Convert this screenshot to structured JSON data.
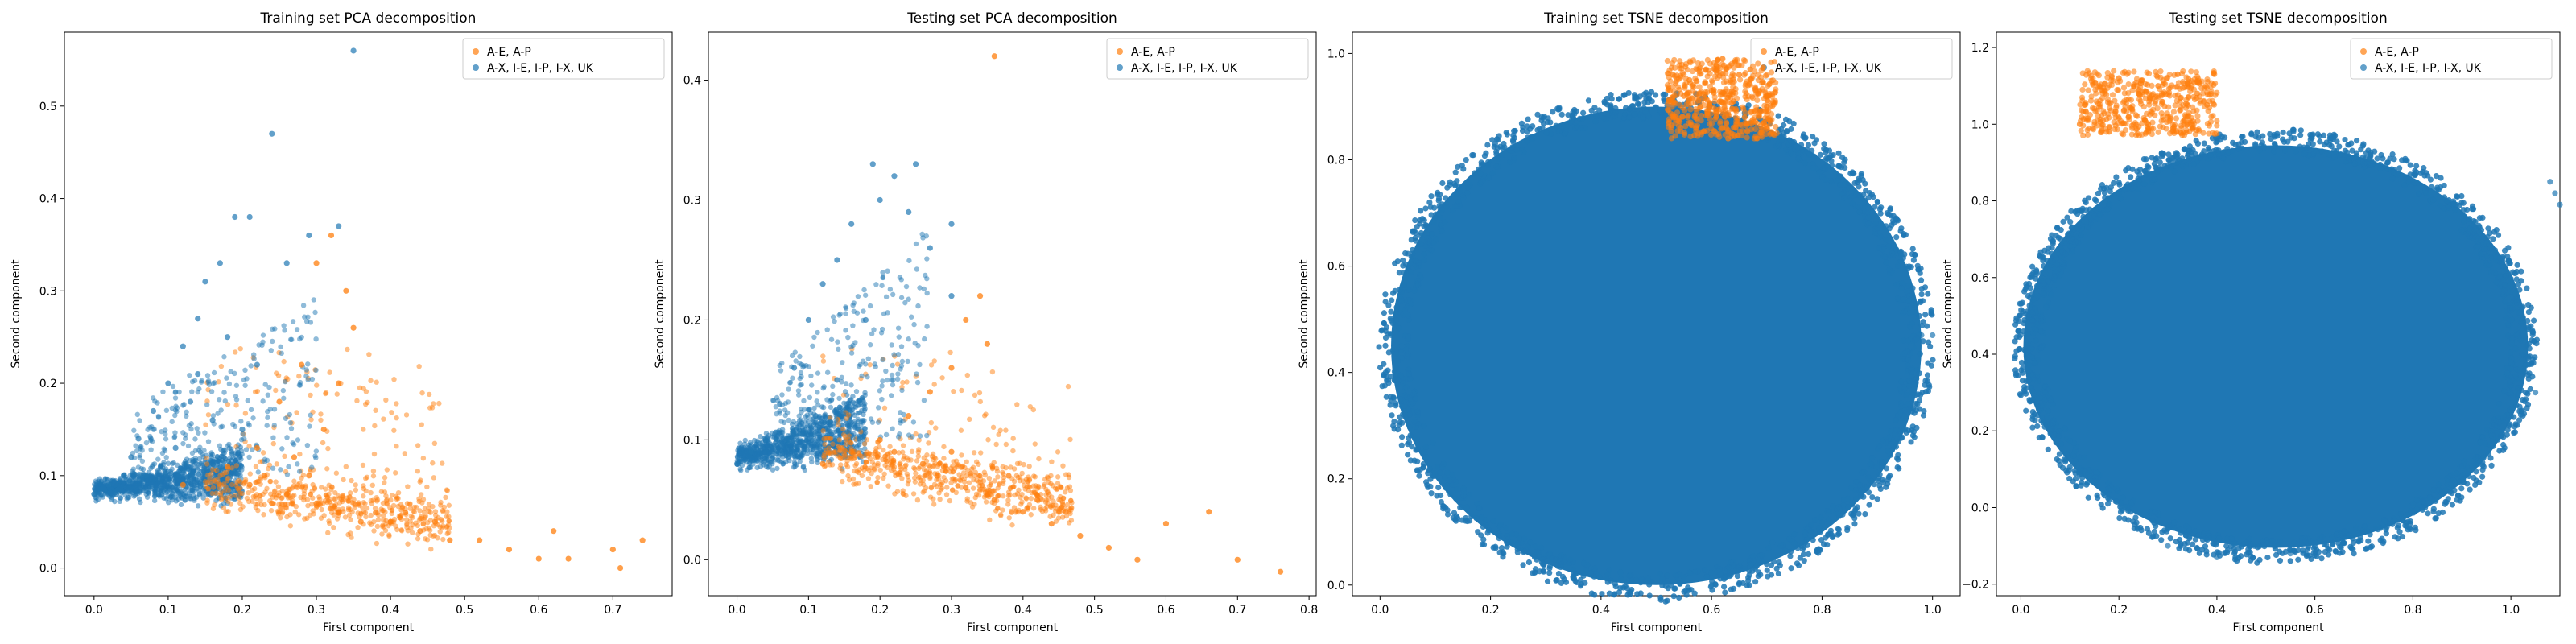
{
  "chart_data": [
    {
      "type": "scatter",
      "title": "Training set PCA decomposition",
      "xlabel": "First component",
      "ylabel": "Second component",
      "xlim": [
        -0.04,
        0.78
      ],
      "ylim": [
        -0.03,
        0.58
      ],
      "xticks": [
        "0.0",
        "0.1",
        "0.2",
        "0.3",
        "0.4",
        "0.5",
        "0.6",
        "0.7"
      ],
      "xtick_values": [
        0.0,
        0.1,
        0.2,
        0.3,
        0.4,
        0.5,
        0.6,
        0.7
      ],
      "yticks": [
        "0.0",
        "0.1",
        "0.2",
        "0.3",
        "0.4",
        "0.5"
      ],
      "ytick_values": [
        0.0,
        0.1,
        0.2,
        0.3,
        0.4,
        0.5
      ],
      "legend_position": "top-right",
      "series": [
        {
          "name": "A-E, A-P",
          "color": "#ff7f0e",
          "points": [
            [
              0.12,
              0.09
            ],
            [
              0.18,
              0.11
            ],
            [
              0.22,
              0.13
            ],
            [
              0.25,
              0.18
            ],
            [
              0.28,
              0.22
            ],
            [
              0.3,
              0.33
            ],
            [
              0.32,
              0.36
            ],
            [
              0.34,
              0.3
            ],
            [
              0.35,
              0.26
            ],
            [
              0.26,
              0.08
            ],
            [
              0.3,
              0.07
            ],
            [
              0.33,
              0.06
            ],
            [
              0.36,
              0.05
            ],
            [
              0.4,
              0.05
            ],
            [
              0.44,
              0.04
            ],
            [
              0.48,
              0.03
            ],
            [
              0.52,
              0.03
            ],
            [
              0.56,
              0.02
            ],
            [
              0.6,
              0.01
            ],
            [
              0.64,
              0.01
            ],
            [
              0.7,
              0.02
            ],
            [
              0.74,
              0.03
            ],
            [
              0.71,
              0.0
            ],
            [
              0.62,
              0.04
            ],
            [
              0.23,
              0.1
            ],
            [
              0.27,
              0.12
            ],
            [
              0.31,
              0.15
            ],
            [
              0.29,
              0.1
            ],
            [
              0.24,
              0.07
            ],
            [
              0.38,
              0.06
            ],
            [
              0.42,
              0.06
            ],
            [
              0.46,
              0.05
            ],
            [
              0.21,
              0.09
            ],
            [
              0.33,
              0.2
            ]
          ]
        },
        {
          "name": "A-X, I-E, I-P, I-X, UK",
          "color": "#1f77b4",
          "points": [
            [
              0.0,
              0.08
            ],
            [
              0.02,
              0.09
            ],
            [
              0.04,
              0.1
            ],
            [
              0.05,
              0.12
            ],
            [
              0.06,
              0.14
            ],
            [
              0.08,
              0.17
            ],
            [
              0.1,
              0.2
            ],
            [
              0.12,
              0.24
            ],
            [
              0.14,
              0.27
            ],
            [
              0.15,
              0.31
            ],
            [
              0.17,
              0.33
            ],
            [
              0.19,
              0.38
            ],
            [
              0.21,
              0.38
            ],
            [
              0.24,
              0.47
            ],
            [
              0.35,
              0.56
            ],
            [
              0.29,
              0.36
            ],
            [
              0.18,
              0.25
            ],
            [
              0.13,
              0.18
            ],
            [
              0.16,
              0.16
            ],
            [
              0.2,
              0.15
            ],
            [
              0.09,
              0.11
            ],
            [
              0.11,
              0.13
            ],
            [
              0.07,
              0.1
            ],
            [
              0.03,
              0.08
            ],
            [
              0.14,
              0.21
            ],
            [
              0.22,
              0.22
            ],
            [
              0.26,
              0.33
            ],
            [
              0.33,
              0.37
            ]
          ]
        }
      ]
    },
    {
      "type": "scatter",
      "title": "Testing set PCA decomposition",
      "xlabel": "First component",
      "ylabel": "Second component",
      "xlim": [
        -0.04,
        0.81
      ],
      "ylim": [
        -0.03,
        0.44
      ],
      "xticks": [
        "0.0",
        "0.1",
        "0.2",
        "0.3",
        "0.4",
        "0.5",
        "0.6",
        "0.7",
        "0.8"
      ],
      "xtick_values": [
        0.0,
        0.1,
        0.2,
        0.3,
        0.4,
        0.5,
        0.6,
        0.7,
        0.8
      ],
      "yticks": [
        "0.0",
        "0.1",
        "0.2",
        "0.3",
        "0.4"
      ],
      "ytick_values": [
        0.0,
        0.1,
        0.2,
        0.3,
        0.4
      ],
      "legend_position": "top-right",
      "series": [
        {
          "name": "A-E, A-P",
          "color": "#ff7f0e",
          "points": [
            [
              0.12,
              0.08
            ],
            [
              0.16,
              0.09
            ],
            [
              0.2,
              0.1
            ],
            [
              0.24,
              0.12
            ],
            [
              0.27,
              0.14
            ],
            [
              0.3,
              0.16
            ],
            [
              0.32,
              0.2
            ],
            [
              0.34,
              0.22
            ],
            [
              0.36,
              0.42
            ],
            [
              0.28,
              0.07
            ],
            [
              0.32,
              0.06
            ],
            [
              0.36,
              0.05
            ],
            [
              0.4,
              0.04
            ],
            [
              0.44,
              0.03
            ],
            [
              0.48,
              0.02
            ],
            [
              0.52,
              0.01
            ],
            [
              0.56,
              0.0
            ],
            [
              0.6,
              0.03
            ],
            [
              0.66,
              0.04
            ],
            [
              0.7,
              0.0
            ],
            [
              0.76,
              -0.01
            ],
            [
              0.35,
              0.18
            ],
            [
              0.22,
              0.09
            ],
            [
              0.26,
              0.08
            ],
            [
              0.3,
              0.09
            ],
            [
              0.38,
              0.07
            ],
            [
              0.42,
              0.05
            ],
            [
              0.46,
              0.04
            ]
          ]
        },
        {
          "name": "A-X, I-E, I-P, I-X, UK",
          "color": "#1f77b4",
          "points": [
            [
              0.0,
              0.08
            ],
            [
              0.02,
              0.09
            ],
            [
              0.04,
              0.1
            ],
            [
              0.06,
              0.13
            ],
            [
              0.08,
              0.16
            ],
            [
              0.1,
              0.2
            ],
            [
              0.12,
              0.23
            ],
            [
              0.14,
              0.25
            ],
            [
              0.16,
              0.28
            ],
            [
              0.19,
              0.33
            ],
            [
              0.22,
              0.32
            ],
            [
              0.24,
              0.29
            ],
            [
              0.2,
              0.3
            ],
            [
              0.27,
              0.26
            ],
            [
              0.3,
              0.22
            ],
            [
              0.18,
              0.2
            ],
            [
              0.14,
              0.15
            ],
            [
              0.11,
              0.12
            ],
            [
              0.07,
              0.1
            ],
            [
              0.25,
              0.33
            ],
            [
              0.3,
              0.28
            ]
          ]
        }
      ]
    },
    {
      "type": "scatter",
      "title": "Training set TSNE decomposition",
      "xlabel": "First component",
      "ylabel": "Second component",
      "xlim": [
        -0.05,
        1.05
      ],
      "ylim": [
        -0.02,
        1.04
      ],
      "xticks": [
        "0.0",
        "0.2",
        "0.4",
        "0.6",
        "0.8",
        "1.0"
      ],
      "xtick_values": [
        0.0,
        0.2,
        0.4,
        0.6,
        0.8,
        1.0
      ],
      "yticks": [
        "0.0",
        "0.2",
        "0.4",
        "0.6",
        "0.8",
        "1.0"
      ],
      "ytick_values": [
        0.0,
        0.2,
        0.4,
        0.6,
        0.8,
        1.0
      ],
      "legend_position": "top-right",
      "series": [
        {
          "name": "A-E, A-P",
          "color": "#ff7f0e",
          "points": [
            [
              0.53,
              0.96
            ],
            [
              0.56,
              0.95
            ],
            [
              0.59,
              0.97
            ],
            [
              0.62,
              0.99
            ],
            [
              0.65,
              0.96
            ],
            [
              0.68,
              0.93
            ],
            [
              0.7,
              0.9
            ],
            [
              0.66,
              0.88
            ],
            [
              0.62,
              0.86
            ],
            [
              0.58,
              0.9
            ],
            [
              0.6,
              0.93
            ],
            [
              0.64,
              0.91
            ],
            [
              0.67,
              0.97
            ],
            [
              0.55,
              0.92
            ],
            [
              0.63,
              0.84
            ]
          ]
        },
        {
          "name": "A-X, I-E, I-P, I-X, UK",
          "color": "#1f77b4",
          "points": [
            [
              0.6,
              0.0
            ],
            [
              0.66,
              0.04
            ],
            [
              0.71,
              0.08
            ],
            [
              0.02,
              0.47
            ],
            [
              0.04,
              0.45
            ],
            [
              0.98,
              0.47
            ],
            [
              1.0,
              0.47
            ],
            [
              0.96,
              0.45
            ]
          ]
        }
      ]
    },
    {
      "type": "scatter",
      "title": "Testing set TSNE decomposition",
      "xlabel": "First component",
      "ylabel": "Second component",
      "xlim": [
        -0.05,
        1.1
      ],
      "ylim": [
        -0.23,
        1.24
      ],
      "xticks": [
        "0.0",
        "0.2",
        "0.4",
        "0.6",
        "0.8",
        "1.0"
      ],
      "xtick_values": [
        0.0,
        0.2,
        0.4,
        0.6,
        0.8,
        1.0
      ],
      "yticks": [
        "−0.2",
        "0.0",
        "0.2",
        "0.4",
        "0.6",
        "0.8",
        "1.0",
        "1.2"
      ],
      "ytick_values": [
        -0.2,
        0.0,
        0.2,
        0.4,
        0.6,
        0.8,
        1.0,
        1.2
      ],
      "legend_position": "top-right",
      "series": [
        {
          "name": "A-E, A-P",
          "color": "#ff7f0e",
          "points": [
            [
              0.13,
              1.05
            ],
            [
              0.16,
              1.1
            ],
            [
              0.2,
              1.12
            ],
            [
              0.24,
              1.08
            ],
            [
              0.28,
              1.1
            ],
            [
              0.32,
              1.13
            ],
            [
              0.36,
              1.08
            ],
            [
              0.38,
              1.05
            ],
            [
              0.3,
              1.02
            ],
            [
              0.22,
              1.02
            ],
            [
              0.18,
              0.98
            ],
            [
              0.26,
              1.0
            ],
            [
              0.34,
              1.02
            ],
            [
              0.12,
              1.0
            ]
          ]
        },
        {
          "name": "A-X, I-E, I-P, I-X, UK",
          "color": "#1f77b4",
          "points": [
            [
              1.08,
              0.85
            ],
            [
              1.09,
              0.82
            ],
            [
              1.1,
              0.79
            ],
            [
              0.05,
              0.61
            ],
            [
              0.07,
              0.58
            ],
            [
              0.0,
              0.45
            ],
            [
              0.02,
              0.44
            ],
            [
              1.05,
              0.3
            ],
            [
              0.4,
              -0.13
            ],
            [
              0.3,
              -0.1
            ],
            [
              0.55,
              -0.12
            ]
          ]
        }
      ]
    }
  ]
}
